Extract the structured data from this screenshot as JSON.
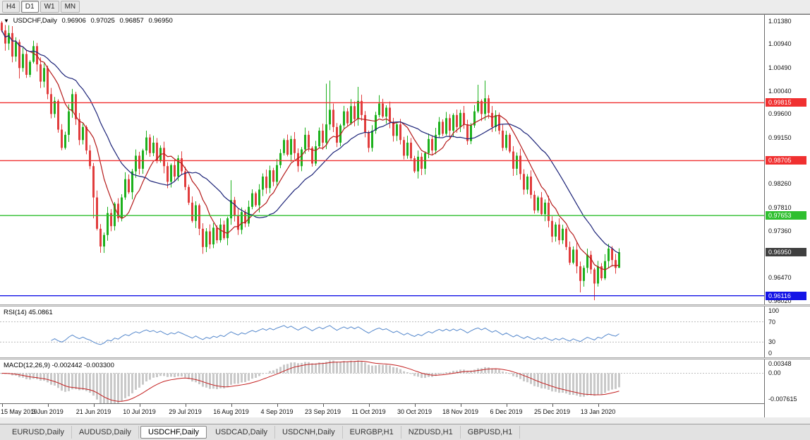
{
  "toolbar": {
    "timeframes": [
      "H4",
      "D1",
      "W1",
      "MN"
    ],
    "active_timeframe": "D1"
  },
  "icons": {
    "chart_marker": "▼"
  },
  "chart_data": {
    "type": "candlestick",
    "symbol": "USDCHF,Daily",
    "ohlc_display": {
      "open": "0.96906",
      "high": "0.97025",
      "low": "0.96857",
      "close": "0.96950"
    },
    "price_axis": {
      "min": 0.9595,
      "max": 1.015,
      "labels": [
        "1.01380",
        "1.00940",
        "1.00490",
        "1.00040",
        "0.99600",
        "0.99150",
        "0.98700",
        "0.98260",
        "0.97810",
        "0.97360",
        "0.96920",
        "0.96470",
        "0.96020"
      ]
    },
    "date_axis": {
      "candles_per_label": 13,
      "labels": [
        "15 May 2019",
        "3 Jun 2019",
        "21 Jun 2019",
        "10 Jul 2019",
        "29 Jul 2019",
        "16 Aug 2019",
        "4 Sep 2019",
        "23 Sep 2019",
        "11 Oct 2019",
        "30 Oct 2019",
        "18 Nov 2019",
        "6 Dec 2019",
        "25 Dec 2019",
        "13 Jan 2020"
      ],
      "start_label": "15 May 2019",
      "end_label": "13 Jan 2020"
    },
    "first_open": 1.0135,
    "default_wick": 0.0013,
    "closes": [
      1.012,
      1.0095,
      1.0115,
      1.007,
      1.0098,
      1.0048,
      1.0075,
      1.0035,
      1.006,
      1.009,
      1.0055,
      1.0022,
      1.0048,
      0.9998,
      0.996,
      0.9985,
      0.993,
      0.9895,
      0.992,
      0.9965,
      0.9998,
      0.995,
      0.991,
      0.9935,
      0.989,
      0.986,
      0.98,
      0.974,
      0.9706,
      0.9728,
      0.977,
      0.9745,
      0.9788,
      0.976,
      0.98,
      0.9835,
      0.981,
      0.985,
      0.988,
      0.9855,
      0.989,
      0.9915,
      0.9885,
      0.9905,
      0.987,
      0.9895,
      0.986,
      0.983,
      0.9862,
      0.984,
      0.9875,
      0.985,
      0.982,
      0.979,
      0.9755,
      0.9785,
      0.974,
      0.9705,
      0.9735,
      0.971,
      0.9742,
      0.9718,
      0.9748,
      0.9722,
      0.976,
      0.9795,
      0.9765,
      0.9738,
      0.9772,
      0.975,
      0.9782,
      0.9808,
      0.9785,
      0.9815,
      0.984,
      0.9818,
      0.9852,
      0.983,
      0.9862,
      0.9885,
      0.991,
      0.9882,
      0.9912,
      0.9885,
      0.986,
      0.9892,
      0.992,
      0.9895,
      0.9865,
      0.9898,
      0.9928,
      0.9905,
      0.994,
      0.9968,
      0.9935,
      0.9905,
      0.9938,
      0.9965,
      0.9942,
      0.9975,
      0.995,
      0.9985,
      0.9958,
      0.9925,
      0.9895,
      0.9928,
      0.9958,
      0.998,
      0.9955,
      0.9972,
      0.9945,
      0.9918,
      0.994,
      0.991,
      0.988,
      0.9905,
      0.9875,
      0.985,
      0.9878,
      0.9855,
      0.9885,
      0.9912,
      0.989,
      0.992,
      0.9945,
      0.9922,
      0.9952,
      0.9928,
      0.9958,
      0.9935,
      0.9962,
      0.994,
      0.9908,
      0.9938,
      0.9965,
      0.9985,
      0.996,
      0.999,
      0.9962,
      0.9935,
      0.9958,
      0.9928,
      0.9895,
      0.992,
      0.9888,
      0.9855,
      0.988,
      0.9845,
      0.9815,
      0.984,
      0.9805,
      0.9775,
      0.98,
      0.9768,
      0.979,
      0.9755,
      0.9725,
      0.9748,
      0.9718,
      0.974,
      0.9705,
      0.9675,
      0.97,
      0.9668,
      0.964,
      0.9665,
      0.969,
      0.9662,
      0.9635,
      0.9668,
      0.9645,
      0.9678,
      0.9702,
      0.968,
      0.9665,
      0.9695
    ],
    "wick_overrides": {
      "0": {
        "high": 1.0138
      },
      "2": {
        "high": 1.013
      },
      "5": {
        "low": 1.0028
      },
      "20": {
        "high": 1.0008
      },
      "26": {
        "low": 0.976
      },
      "28": {
        "low": 0.9694
      },
      "41": {
        "high": 0.9928
      },
      "57": {
        "low": 0.9692
      },
      "65": {
        "high": 0.9833
      },
      "86": {
        "high": 0.9934
      },
      "92": {
        "high": 1.0018
      },
      "93": {
        "high": 1.0024
      },
      "101": {
        "high": 1.0012
      },
      "107": {
        "high": 0.9996
      },
      "135": {
        "high": 1.0016
      },
      "137": {
        "high": 1.0024
      },
      "164": {
        "low": 0.9618
      },
      "168": {
        "low": 0.9603
      },
      "175": {
        "high": 0.97025,
        "low": 0.96857
      }
    },
    "levels": [
      {
        "value": 0.99815,
        "label": "0.99815",
        "color": "#f03030"
      },
      {
        "value": 0.98705,
        "label": "0.98705",
        "color": "#f03030"
      },
      {
        "value": 0.97653,
        "label": "0.97653",
        "color": "#2fbf2f"
      },
      {
        "value": 0.96116,
        "label": "0.96116",
        "color": "#1414e6"
      }
    ],
    "current_price": {
      "value": 0.9695,
      "label": "0.96950",
      "bg": "#3f3f3f"
    },
    "moving_averages": [
      {
        "name": "ma-fast",
        "period": 9,
        "color": "#b51a1a"
      },
      {
        "name": "ma-slow",
        "period": 22,
        "color": "#1c2378"
      }
    ],
    "colors": {
      "up": "#1db11d",
      "down": "#e13d3d",
      "background": "#ffffff"
    },
    "indicators": {
      "rsi": {
        "label": "RSI(14) 45.0861",
        "period": 14,
        "current_value": 45.0861,
        "axis_labels": [
          "100",
          "70",
          "30",
          "0"
        ],
        "guides": [
          70,
          30
        ],
        "color": "#5588cc"
      },
      "macd": {
        "label": "MACD(12,26,9) -0.002442 -0.003300",
        "fast": 12,
        "slow": 26,
        "signal_period": 9,
        "current_main": -0.002442,
        "current_signal": -0.0033,
        "axis_labels": [
          "0.00348",
          "0.00",
          "-0.007615"
        ],
        "max": 0.00348,
        "min": -0.007615,
        "hist_color": "#c9c9c9",
        "signal_color": "#c42020",
        "zero_line_color": "#bdbdbd"
      }
    }
  },
  "tabs": {
    "items": [
      "EURUSD,Daily",
      "AUDUSD,Daily",
      "USDCHF,Daily",
      "USDCAD,Daily",
      "USDCNH,Daily",
      "EURGBP,H1",
      "NZDUSD,H1",
      "GBPUSD,H1"
    ],
    "active": "USDCHF,Daily"
  }
}
